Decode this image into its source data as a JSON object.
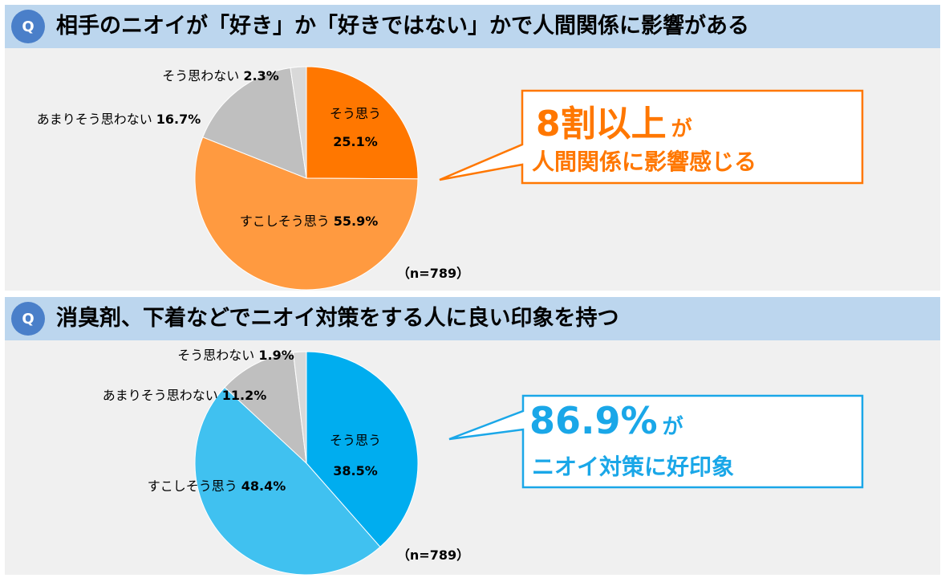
{
  "chart_data": [
    {
      "type": "pie",
      "title": "相手のニオイが「好き」か「好きではない」かで人間関係に影響がある",
      "q_badge": "Q",
      "categories": [
        "そう思う",
        "すこしそう思う",
        "あまりそう思わない",
        "そう思わない"
      ],
      "values": [
        25.1,
        55.9,
        16.7,
        2.3
      ],
      "labels": [
        "25.1%",
        "55.9%",
        "16.7%",
        "2.3%"
      ],
      "colors": [
        "#ff7700",
        "#ff9a40",
        "#bfbfbf",
        "#d9d9d9"
      ],
      "n_label": "（n=789）",
      "callout": {
        "big": "8割以上",
        "big_suffix": "が",
        "sub": "人間関係に影響感じる",
        "color": "#ff7700"
      }
    },
    {
      "type": "pie",
      "title": "消臭剤、下着などでニオイ対策をする人に良い印象を持つ",
      "q_badge": "Q",
      "categories": [
        "そう思う",
        "すこしそう思う",
        "あまりそう思わない",
        "そう思わない"
      ],
      "values": [
        38.5,
        48.4,
        11.2,
        1.9
      ],
      "labels": [
        "38.5%",
        "48.4%",
        "11.2%",
        "1.9%"
      ],
      "colors": [
        "#00adef",
        "#40c1f0",
        "#bfbfbf",
        "#d9d9d9"
      ],
      "n_label": "（n=789）",
      "callout": {
        "big": "86.9%",
        "big_suffix": "が",
        "sub": "ニオイ対策に好印象",
        "color": "#1aa7e8"
      }
    }
  ]
}
